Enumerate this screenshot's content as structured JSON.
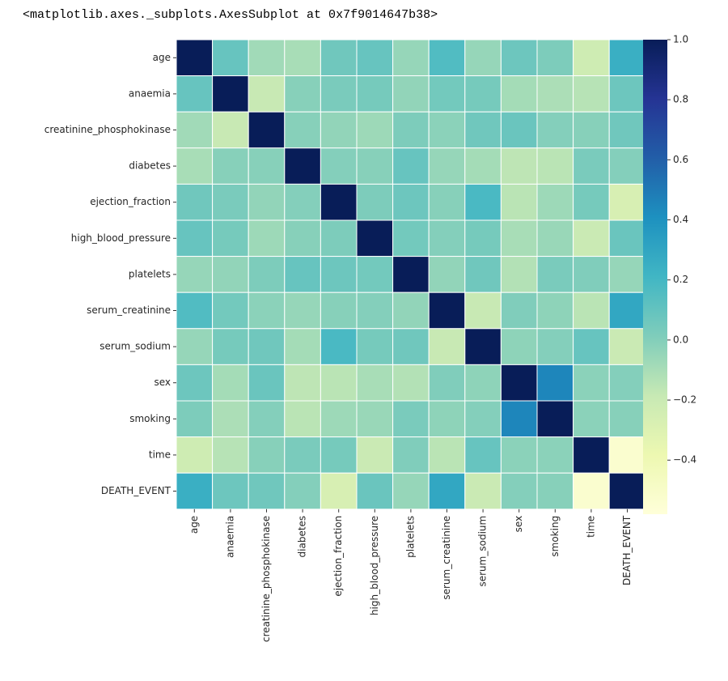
{
  "output_text": "<matplotlib.axes._subplots.AxesSubplot at 0x7f9014647b38>",
  "chart_data": {
    "type": "heatmap",
    "title": "",
    "xlabel": "",
    "ylabel": "",
    "colormap": "YlGnBu",
    "vmin": -0.58,
    "vmax": 1.0,
    "labels": [
      "age",
      "anaemia",
      "creatinine_phosphokinase",
      "diabetes",
      "ejection_fraction",
      "high_blood_pressure",
      "platelets",
      "serum_creatinine",
      "serum_sodium",
      "sex",
      "smoking",
      "time",
      "DEATH_EVENT"
    ],
    "values": [
      [
        1.0,
        0.09,
        -0.08,
        -0.1,
        0.06,
        0.09,
        -0.05,
        0.16,
        -0.05,
        0.07,
        0.02,
        -0.22,
        0.25
      ],
      [
        0.09,
        1.0,
        -0.19,
        -0.01,
        0.03,
        0.04,
        -0.04,
        0.05,
        0.04,
        -0.09,
        -0.11,
        -0.14,
        0.07
      ],
      [
        -0.08,
        -0.19,
        1.0,
        -0.01,
        -0.04,
        -0.07,
        0.02,
        -0.02,
        0.06,
        0.08,
        0.0,
        -0.01,
        0.06
      ],
      [
        -0.1,
        -0.01,
        -0.01,
        1.0,
        -0.0,
        -0.01,
        0.09,
        -0.05,
        -0.09,
        -0.16,
        -0.15,
        0.03,
        -0.0
      ],
      [
        0.06,
        0.03,
        -0.04,
        -0.0,
        1.0,
        0.02,
        0.07,
        -0.01,
        0.18,
        -0.15,
        -0.07,
        0.04,
        -0.27
      ],
      [
        0.09,
        0.04,
        -0.07,
        -0.01,
        0.02,
        1.0,
        0.05,
        -0.0,
        0.04,
        -0.1,
        -0.06,
        -0.2,
        0.08
      ],
      [
        -0.05,
        -0.04,
        0.02,
        0.09,
        0.07,
        0.05,
        1.0,
        -0.04,
        0.06,
        -0.13,
        0.03,
        0.01,
        -0.05
      ],
      [
        0.16,
        0.05,
        -0.02,
        -0.05,
        -0.01,
        -0.0,
        -0.04,
        1.0,
        -0.19,
        0.01,
        -0.03,
        -0.15,
        0.29
      ],
      [
        -0.05,
        0.04,
        0.06,
        -0.09,
        0.18,
        0.04,
        0.06,
        -0.19,
        1.0,
        -0.03,
        0.0,
        0.09,
        -0.2
      ],
      [
        0.07,
        -0.09,
        0.08,
        -0.16,
        -0.15,
        -0.1,
        -0.13,
        0.01,
        -0.03,
        1.0,
        0.45,
        -0.02,
        -0.0
      ],
      [
        0.02,
        -0.11,
        0.0,
        -0.15,
        -0.07,
        -0.06,
        0.03,
        -0.03,
        0.0,
        0.45,
        1.0,
        -0.02,
        -0.01
      ],
      [
        -0.22,
        -0.14,
        -0.01,
        0.03,
        0.04,
        -0.2,
        0.01,
        -0.15,
        0.09,
        -0.02,
        -0.02,
        1.0,
        -0.53
      ],
      [
        0.25,
        0.07,
        0.06,
        -0.0,
        -0.27,
        0.08,
        -0.05,
        0.29,
        -0.2,
        -0.0,
        -0.01,
        -0.53,
        1.0
      ]
    ],
    "colorbar": {
      "ticks": [
        1.0,
        0.8,
        0.6,
        0.4,
        0.2,
        0.0,
        -0.2,
        -0.4
      ],
      "tick_labels": [
        "1.0",
        "0.8",
        "0.6",
        "0.4",
        "0.2",
        "0.0",
        "−0.2",
        "−0.4"
      ]
    }
  }
}
